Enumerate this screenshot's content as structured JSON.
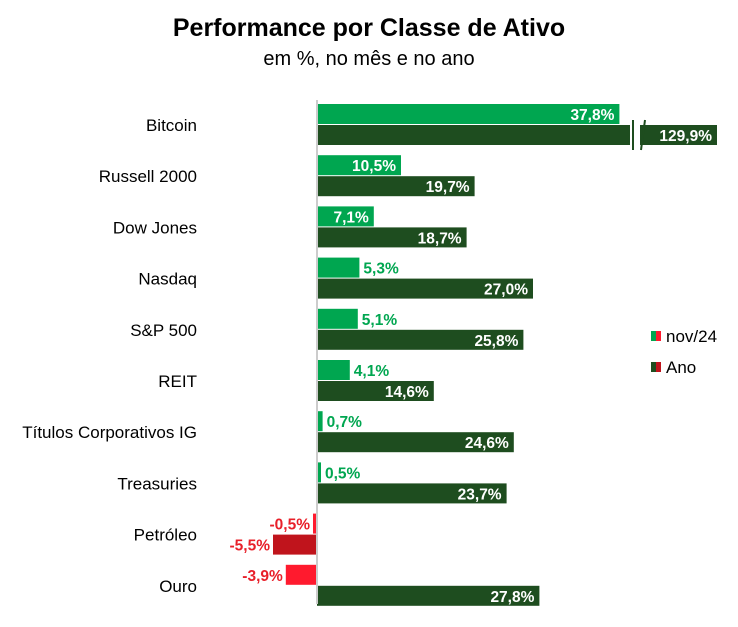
{
  "chart_data": {
    "type": "bar",
    "orientation": "horizontal",
    "title": "Performance por Classe de Ativo",
    "subtitle": "em %, no mês e no ano",
    "categories": [
      "Bitcoin",
      "Russell 2000",
      "Dow Jones",
      "Nasdaq",
      "S&P 500",
      "REIT",
      "Títulos Corporativos IG",
      "Treasuries",
      "Petróleo",
      "Ouro"
    ],
    "series": [
      {
        "name": "nov/24",
        "values": [
          37.8,
          10.5,
          7.1,
          5.3,
          5.1,
          4.1,
          0.7,
          0.5,
          -0.5,
          -3.9
        ],
        "labels": [
          "37,8%",
          "10,5%",
          "7,1%",
          "5,3%",
          "5,1%",
          "4,1%",
          "0,7%",
          "0,5%",
          "-0,5%",
          "-3,9%"
        ]
      },
      {
        "name": "Ano",
        "values": [
          129.9,
          19.7,
          18.7,
          27.0,
          25.8,
          14.6,
          24.6,
          23.7,
          -5.5,
          27.8
        ],
        "labels": [
          "129,9%",
          "19,7%",
          "18,7%",
          "27,0%",
          "25,8%",
          "14,6%",
          "24,6%",
          "23,7%",
          "-5,5%",
          "27,8%"
        ]
      }
    ],
    "axis_break": {
      "category": "Bitcoin",
      "series": "Ano"
    },
    "legend": {
      "position": "right",
      "entries": [
        "nov/24",
        "Ano"
      ]
    },
    "colors": {
      "month_positive": "#00a650",
      "year_positive": "#1e4d1f",
      "month_negative": "#ff1a2e",
      "year_negative": "#c0141c",
      "negative_label": "#e8202a",
      "axis": "#cccccc"
    }
  }
}
